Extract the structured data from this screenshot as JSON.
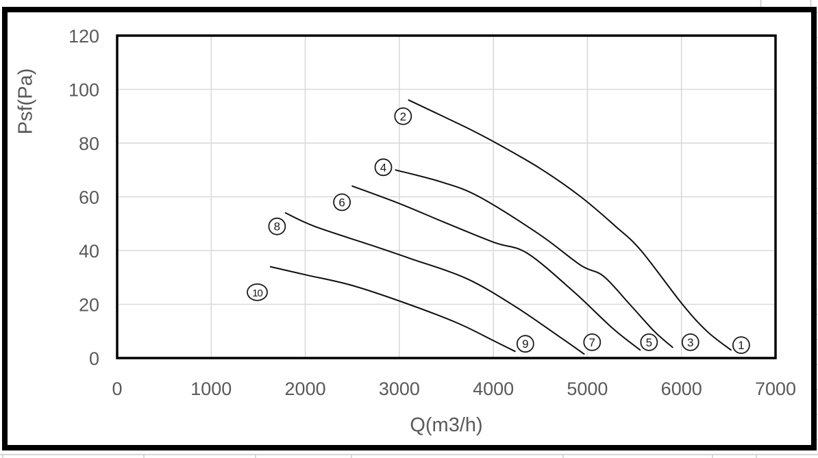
{
  "app": {
    "description": "Embedded spreadsheet line chart of fan static pressure curves"
  },
  "colors": {
    "background": "#ffffff",
    "chart_border": "#000000",
    "plot_border": "#000000",
    "gridline": "#d9d9d9",
    "curve": "#0d0d0d",
    "axis_text": "#595959",
    "label_circle": "#1a1a1a",
    "label_text": "#1a1a1a",
    "sheet_gridline": "#c9c9c9"
  },
  "chart_data": {
    "type": "line",
    "title": "",
    "xlabel": "Q(m3/h)",
    "ylabel": "Psf(Pa)",
    "xlim": [
      0,
      7000
    ],
    "ylim": [
      0,
      120
    ],
    "x_ticks": [
      0,
      1000,
      2000,
      3000,
      4000,
      5000,
      6000,
      7000
    ],
    "y_ticks": [
      0,
      20,
      40,
      60,
      80,
      100,
      120
    ],
    "grid": true,
    "legend": "none",
    "series": [
      {
        "name": "curve-2-1",
        "start_label": "2",
        "end_label": "1",
        "points": [
          [
            3100,
            96
          ],
          [
            3700,
            86
          ],
          [
            4030,
            80
          ],
          [
            4500,
            70.5
          ],
          [
            4930,
            60
          ],
          [
            5300,
            49
          ],
          [
            5570,
            40
          ],
          [
            6010,
            20
          ],
          [
            6270,
            10
          ],
          [
            6525,
            3
          ]
        ]
      },
      {
        "name": "curve-4-3",
        "start_label": "4",
        "end_label": "3",
        "points": [
          [
            2960,
            70
          ],
          [
            3450,
            65.5
          ],
          [
            3850,
            60
          ],
          [
            4490,
            46
          ],
          [
            4930,
            34.5
          ],
          [
            5170,
            30.5
          ],
          [
            5450,
            20
          ],
          [
            5710,
            10
          ],
          [
            5905,
            4
          ]
        ]
      },
      {
        "name": "curve-6-5",
        "start_label": "6",
        "end_label": "5",
        "points": [
          [
            2500,
            64
          ],
          [
            3000,
            57.5
          ],
          [
            3480,
            50.5
          ],
          [
            4010,
            43
          ],
          [
            4360,
            39
          ],
          [
            4860,
            24.5
          ],
          [
            5270,
            11
          ],
          [
            5560,
            3
          ]
        ]
      },
      {
        "name": "curve-8-7",
        "start_label": "8",
        "end_label": "7",
        "points": [
          [
            1790,
            54
          ],
          [
            2100,
            49
          ],
          [
            2700,
            42
          ],
          [
            3120,
            37
          ],
          [
            3720,
            29.5
          ],
          [
            4240,
            19
          ],
          [
            4700,
            8
          ],
          [
            4965,
            1.5
          ]
        ]
      },
      {
        "name": "curve-10-9",
        "start_label": "10",
        "end_label": "9",
        "points": [
          [
            1630,
            34
          ],
          [
            2000,
            31
          ],
          [
            2500,
            27
          ],
          [
            3100,
            20
          ],
          [
            3620,
            13
          ],
          [
            4000,
            6.5
          ],
          [
            4230,
            2.5
          ]
        ]
      }
    ],
    "point_labels": [
      {
        "text": "2",
        "q": 3040,
        "p": 90
      },
      {
        "text": "4",
        "q": 2830,
        "p": 71
      },
      {
        "text": "6",
        "q": 2390,
        "p": 58
      },
      {
        "text": "8",
        "q": 1700,
        "p": 49
      },
      {
        "text": "10",
        "q": 1490,
        "p": 24.5
      },
      {
        "text": "9",
        "q": 4340,
        "p": 5.3
      },
      {
        "text": "7",
        "q": 5050,
        "p": 5.9
      },
      {
        "text": "5",
        "q": 5655,
        "p": 5.9
      },
      {
        "text": "3",
        "q": 6095,
        "p": 5.9
      },
      {
        "text": "1",
        "q": 6635,
        "p": 4.8
      }
    ]
  }
}
